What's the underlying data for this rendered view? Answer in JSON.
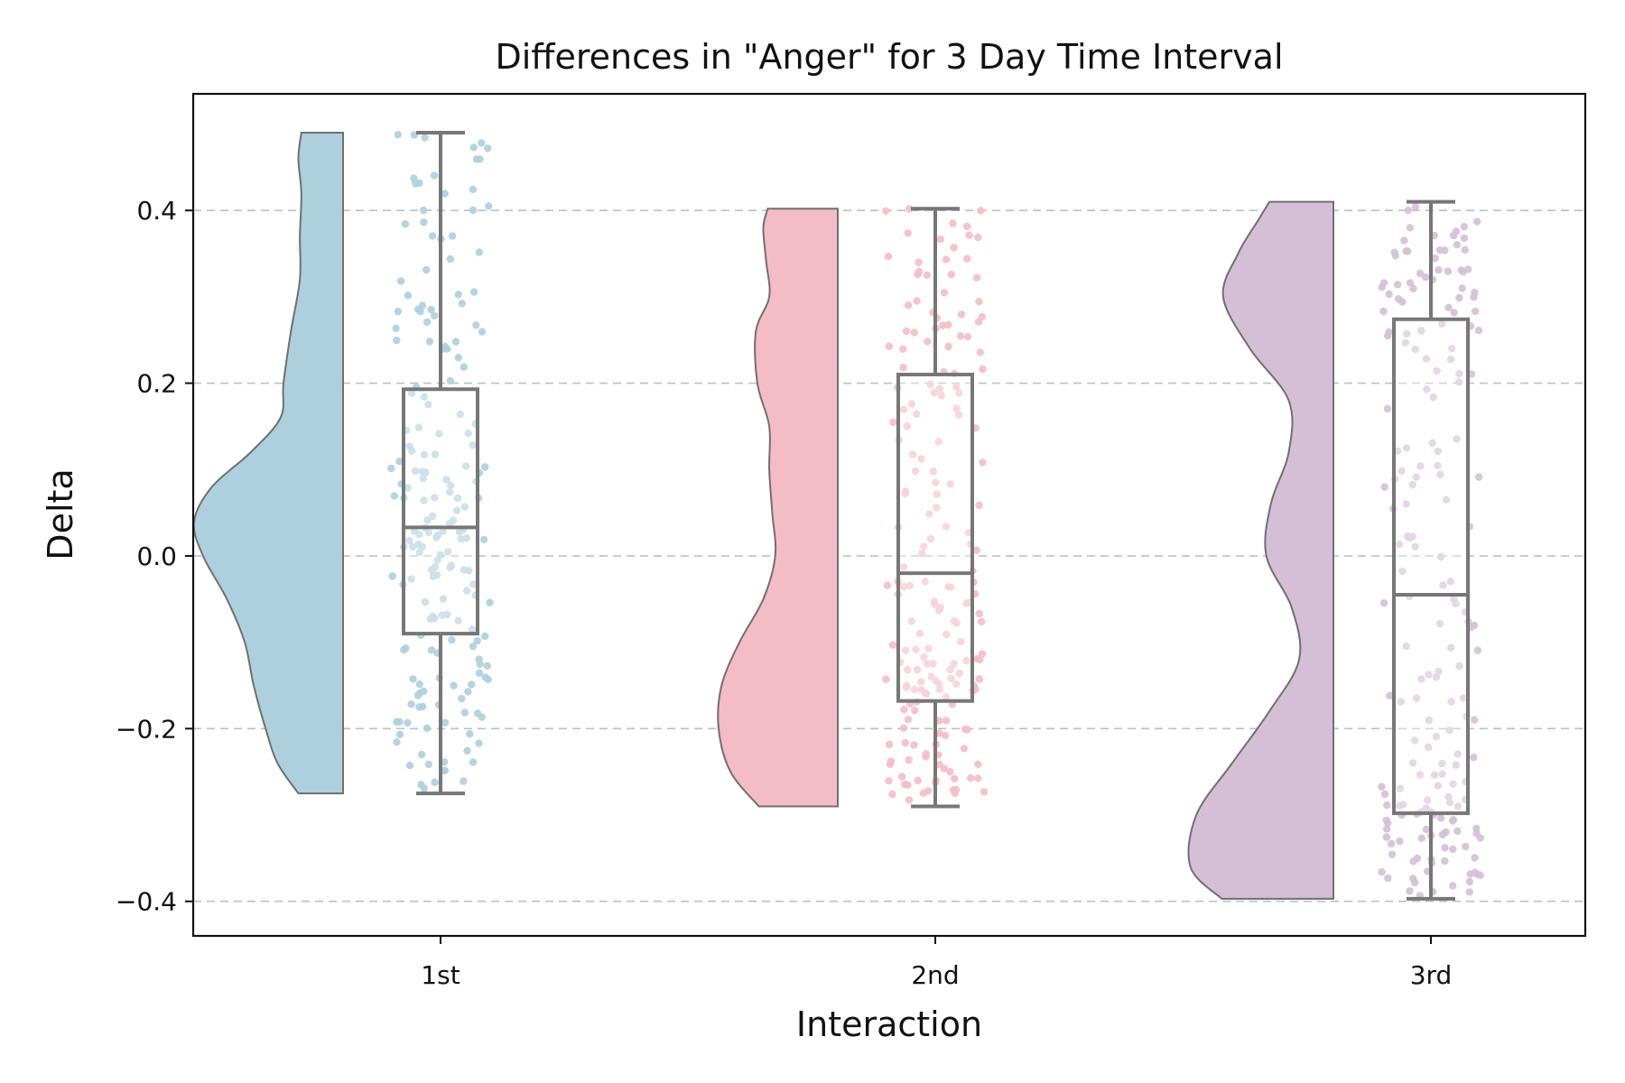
{
  "chart_data": {
    "type": "raincloud",
    "title": "Differences in \"Anger\" for 3 Day Time Interval",
    "xlabel": "Interaction",
    "ylabel": "Delta",
    "ylim": [
      -0.44,
      0.535
    ],
    "yticks": [
      -0.4,
      -0.2,
      0.0,
      0.2,
      0.4
    ],
    "ytick_labels": [
      "−0.4",
      "−0.2",
      "0.0",
      "0.2",
      "0.4"
    ],
    "categories": [
      "1st",
      "2nd",
      "3rd"
    ],
    "grid": "y-dashed",
    "series": [
      {
        "name": "1st",
        "color": "#aecfdd",
        "box": {
          "whisker_low": -0.275,
          "q1": -0.09,
          "median": 0.033,
          "q3": 0.193,
          "whisker_high": 0.49
        },
        "density": [
          [
            -0.275,
            0.3
          ],
          [
            -0.24,
            0.44
          ],
          [
            -0.2,
            0.52
          ],
          [
            -0.15,
            0.6
          ],
          [
            -0.1,
            0.66
          ],
          [
            -0.05,
            0.78
          ],
          [
            0.0,
            0.94
          ],
          [
            0.04,
            1.0
          ],
          [
            0.08,
            0.88
          ],
          [
            0.12,
            0.62
          ],
          [
            0.16,
            0.42
          ],
          [
            0.2,
            0.4
          ],
          [
            0.26,
            0.35
          ],
          [
            0.32,
            0.29
          ],
          [
            0.37,
            0.29
          ],
          [
            0.42,
            0.28
          ],
          [
            0.46,
            0.3
          ],
          [
            0.49,
            0.28
          ]
        ]
      },
      {
        "name": "2nd",
        "color": "#f4bcc6",
        "box": {
          "whisker_low": -0.29,
          "q1": -0.168,
          "median": -0.02,
          "q3": 0.21,
          "whisker_high": 0.402
        },
        "density": [
          [
            -0.29,
            0.53
          ],
          [
            -0.25,
            0.72
          ],
          [
            -0.2,
            0.8
          ],
          [
            -0.15,
            0.78
          ],
          [
            -0.1,
            0.66
          ],
          [
            -0.05,
            0.5
          ],
          [
            0.0,
            0.42
          ],
          [
            0.05,
            0.44
          ],
          [
            0.1,
            0.46
          ],
          [
            0.15,
            0.46
          ],
          [
            0.2,
            0.54
          ],
          [
            0.26,
            0.55
          ],
          [
            0.3,
            0.46
          ],
          [
            0.34,
            0.48
          ],
          [
            0.38,
            0.5
          ],
          [
            0.402,
            0.47
          ]
        ]
      },
      {
        "name": "3rd",
        "color": "#d4bfd7",
        "box": {
          "whisker_low": -0.397,
          "q1": -0.298,
          "median": -0.045,
          "q3": 0.274,
          "whisker_high": 0.41
        },
        "density": [
          [
            -0.397,
            0.75
          ],
          [
            -0.36,
            0.96
          ],
          [
            -0.3,
            0.92
          ],
          [
            -0.24,
            0.68
          ],
          [
            -0.18,
            0.43
          ],
          [
            -0.12,
            0.23
          ],
          [
            -0.06,
            0.28
          ],
          [
            0.0,
            0.45
          ],
          [
            0.06,
            0.42
          ],
          [
            0.12,
            0.3
          ],
          [
            0.18,
            0.3
          ],
          [
            0.24,
            0.56
          ],
          [
            0.3,
            0.74
          ],
          [
            0.35,
            0.64
          ],
          [
            0.39,
            0.5
          ],
          [
            0.41,
            0.43
          ]
        ]
      }
    ]
  }
}
